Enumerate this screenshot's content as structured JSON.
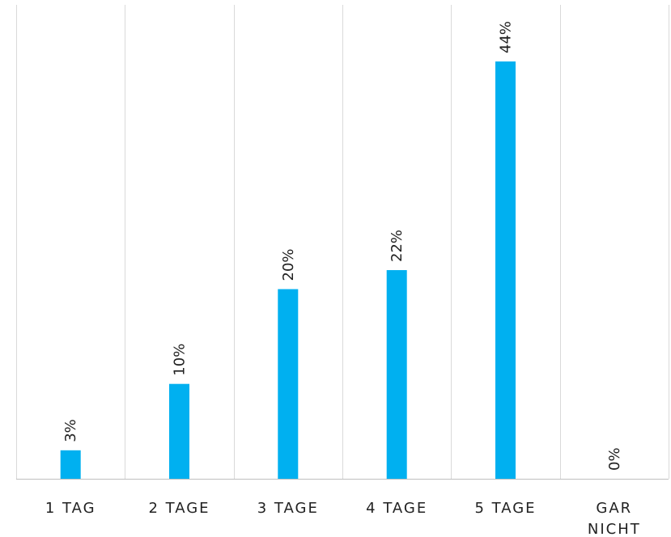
{
  "chart_data": {
    "type": "bar",
    "categories": [
      "1 TAG",
      "2 TAGE",
      "3 TAGE",
      "4 TAGE",
      "5 TAGE",
      "GAR NICHT"
    ],
    "values": [
      3,
      10,
      20,
      22,
      44,
      0
    ],
    "data_labels": [
      "3%",
      "10%",
      "20%",
      "22%",
      "44%",
      "0%"
    ],
    "title": "",
    "xlabel": "",
    "ylabel": "",
    "ylim": [
      0,
      50
    ],
    "grid": "vertical separators",
    "legend": "none",
    "colors": {
      "bar": "#00B0F0",
      "grid": "#d9d9d9",
      "axis": "#bfbfbf",
      "text": "#222222"
    }
  }
}
